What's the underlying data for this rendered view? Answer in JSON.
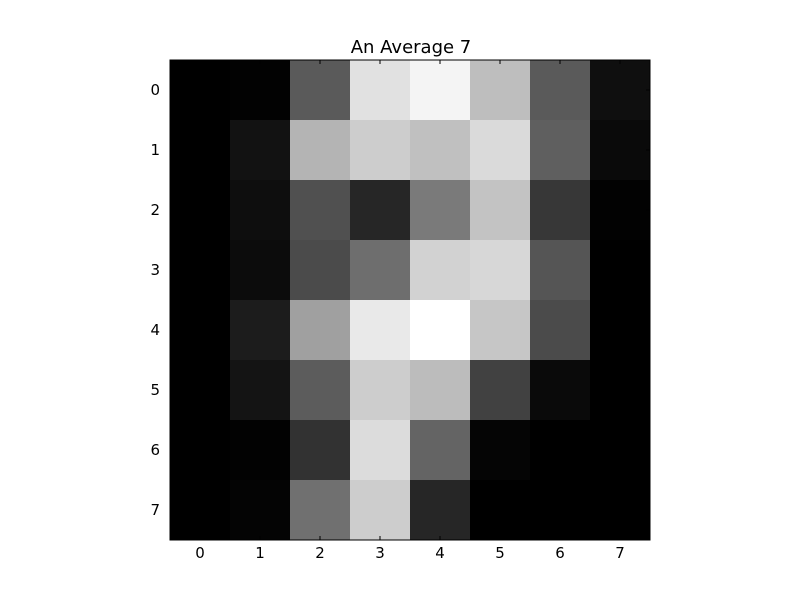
{
  "chart_data": {
    "type": "heatmap",
    "title": "An Average 7",
    "colormap": "gray",
    "vmin": 0,
    "vmax": 255,
    "x_ticks": [
      "0",
      "1",
      "2",
      "3",
      "4",
      "5",
      "6",
      "7"
    ],
    "y_ticks": [
      "0",
      "1",
      "2",
      "3",
      "4",
      "5",
      "6",
      "7"
    ],
    "values": [
      [
        0,
        2,
        90,
        225,
        244,
        190,
        90,
        15
      ],
      [
        0,
        18,
        180,
        205,
        192,
        218,
        95,
        10
      ],
      [
        0,
        14,
        80,
        38,
        122,
        195,
        55,
        2
      ],
      [
        0,
        12,
        75,
        110,
        210,
        215,
        85,
        0
      ],
      [
        0,
        28,
        160,
        233,
        255,
        198,
        75,
        0
      ],
      [
        0,
        20,
        92,
        205,
        188,
        65,
        10,
        0
      ],
      [
        0,
        2,
        50,
        220,
        100,
        5,
        0,
        0
      ],
      [
        0,
        4,
        112,
        205,
        38,
        0,
        0,
        0
      ]
    ]
  }
}
